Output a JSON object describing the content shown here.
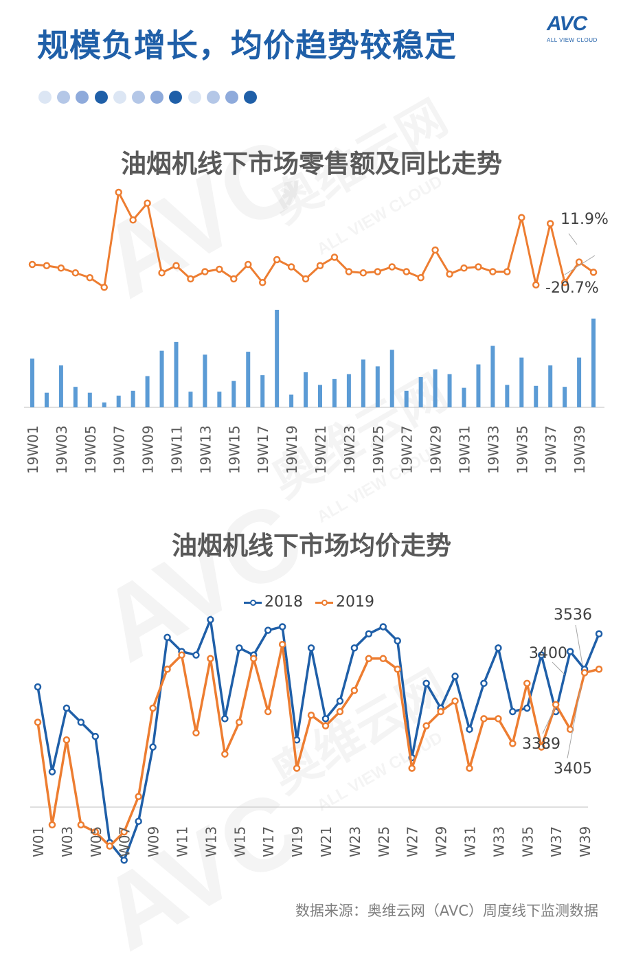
{
  "header": {
    "title": "规模负增长，均价趋势较稳定",
    "logo_text": "AVC",
    "logo_sub": "ALL VIEW CLOUD"
  },
  "decoration": {
    "dot_colors": [
      "#dce6f4",
      "#b4c7e7",
      "#8eaadb",
      "#1f5fa8",
      "#dce6f4",
      "#b4c7e7",
      "#8eaadb",
      "#1f5fa8",
      "#dce6f4",
      "#b4c7e7",
      "#8eaadb",
      "#1f5fa8"
    ]
  },
  "watermark": {
    "text1": "AVC",
    "text2": "奥维云网",
    "text3": "ALL VIEW CLOUD"
  },
  "colors": {
    "blue": "#1f5fa8",
    "orange": "#ed7d31",
    "bar": "#5b9bd5",
    "grey": "#595959"
  },
  "chart_data": [
    {
      "type": "bar+line",
      "title": "油烟机线下市场零售额及同比走势",
      "categories": [
        "19W01",
        "19W02",
        "19W03",
        "19W04",
        "19W05",
        "19W06",
        "19W07",
        "19W08",
        "19W09",
        "19W10",
        "19W11",
        "19W12",
        "19W13",
        "19W14",
        "19W15",
        "19W16",
        "19W17",
        "19W18",
        "19W19",
        "19W20",
        "19W21",
        "19W22",
        "19W23",
        "19W24",
        "19W25",
        "19W26",
        "19W27",
        "19W28",
        "19W29",
        "19W30",
        "19W31",
        "19W32",
        "19W33",
        "19W34",
        "19W35",
        "19W36",
        "19W37",
        "19W38",
        "19W39",
        "19W40"
      ],
      "tick_labels": [
        "19W01",
        "19W03",
        "19W05",
        "19W07",
        "19W09",
        "19W11",
        "19W13",
        "19W15",
        "19W17",
        "19W19",
        "19W21",
        "19W23",
        "19W25",
        "19W27",
        "19W29",
        "19W31",
        "19W33",
        "19W35",
        "19W37",
        "19W39"
      ],
      "bars": {
        "name": "零售额",
        "values": [
          50,
          15,
          43,
          21,
          15,
          5,
          12,
          17,
          32,
          58,
          67,
          16,
          54,
          16,
          27,
          57,
          33,
          100,
          13,
          36,
          23,
          29,
          34,
          49,
          42,
          59,
          17,
          31,
          39,
          34,
          20,
          44,
          63,
          23,
          51,
          22,
          43,
          21,
          51,
          91
        ]
      },
      "line": {
        "name": "同比",
        "values": [
          -4,
          -5,
          -7,
          -11,
          -15,
          -23,
          56,
          33,
          47,
          -11,
          -5,
          -16,
          -10,
          -8,
          -16,
          -4,
          -19,
          0,
          -6,
          -16,
          -5,
          2,
          -10,
          -11,
          -10,
          -6,
          -10,
          -15,
          8,
          -12,
          -7,
          -6,
          -10,
          -10,
          35,
          -21,
          30,
          -19,
          -2,
          -10.5
        ]
      },
      "annotations": [
        "11.9%",
        "-20.7%"
      ]
    },
    {
      "type": "line",
      "title": "油烟机线下市场均价走势",
      "categories": [
        "W01",
        "W02",
        "W03",
        "W04",
        "W05",
        "W06",
        "W07",
        "W08",
        "W09",
        "W10",
        "W11",
        "W12",
        "W13",
        "W14",
        "W15",
        "W16",
        "W17",
        "W18",
        "W19",
        "W20",
        "W21",
        "W22",
        "W23",
        "W24",
        "W25",
        "W26",
        "W27",
        "W28",
        "W29",
        "W30",
        "W31",
        "W32",
        "W33",
        "W34",
        "W35",
        "W36",
        "W37",
        "W38",
        "W39",
        "W40"
      ],
      "tick_labels": [
        "W01",
        "W03",
        "W05",
        "W07",
        "W09",
        "W11",
        "W13",
        "W15",
        "W17",
        "W19",
        "W21",
        "W23",
        "W25",
        "W27",
        "W29",
        "W31",
        "W33",
        "W35",
        "W37",
        "W39"
      ],
      "series": [
        {
          "name": "2018",
          "values": [
            3420,
            3300,
            3390,
            3370,
            3350,
            3200,
            3175,
            3230,
            3335,
            3490,
            3470,
            3465,
            3515,
            3375,
            3475,
            3465,
            3500,
            3505,
            3345,
            3475,
            3375,
            3400,
            3475,
            3495,
            3505,
            3485,
            3320,
            3425,
            3390,
            3435,
            3360,
            3425,
            3475,
            3385,
            3390,
            3465,
            3385,
            3470,
            3445,
            3495
          ]
        },
        {
          "name": "2019",
          "values": [
            3370,
            3225,
            3345,
            3225,
            3215,
            3195,
            3215,
            3265,
            3390,
            3445,
            3465,
            3355,
            3460,
            3325,
            3370,
            3460,
            3385,
            3480,
            3305,
            3380,
            3365,
            3385,
            3415,
            3460,
            3460,
            3445,
            3305,
            3365,
            3385,
            3400,
            3305,
            3375,
            3375,
            3340,
            3425,
            3335,
            3395,
            3360,
            3440,
            3445
          ]
        }
      ],
      "annotations": [
        "3536",
        "3400",
        "3389",
        "3405"
      ]
    }
  ],
  "footer": {
    "source": "数据来源：奥维云网（AVC）周度线下监测数据"
  }
}
